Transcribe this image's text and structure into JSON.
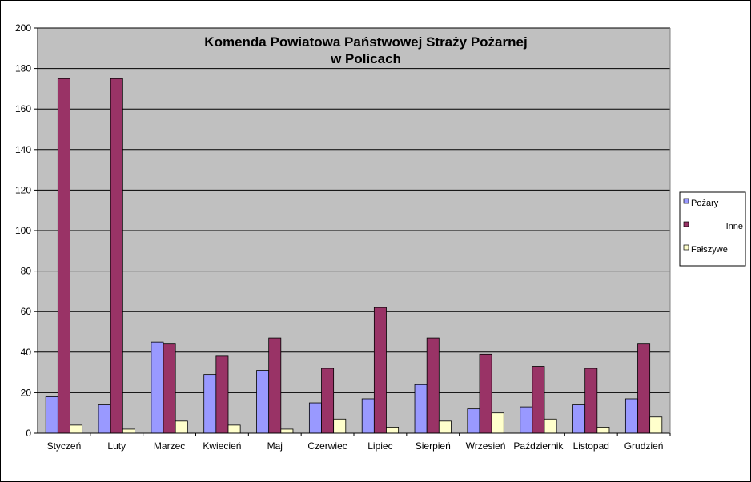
{
  "chart_data": {
    "type": "bar",
    "title_lines": [
      "Komenda Powiatowa Państwowej Straży Pożarnej",
      "w Policach"
    ],
    "categories": [
      "Styczeń",
      "Luty",
      "Marzec",
      "Kwiecień",
      "Maj",
      "Czerwiec",
      "Lipiec",
      "Sierpień",
      "Wrzesień",
      "Październik",
      "Listopad",
      "Grudzień"
    ],
    "series": [
      {
        "name": "Pożary",
        "color": "#9999ff",
        "values": [
          18,
          14,
          45,
          29,
          31,
          15,
          17,
          24,
          12,
          13,
          14,
          17
        ]
      },
      {
        "name": "Inne",
        "color": "#993366",
        "values": [
          175,
          175,
          44,
          38,
          47,
          32,
          62,
          47,
          39,
          33,
          32,
          44
        ]
      },
      {
        "name": "Fałszywe",
        "color": "#ffffcc",
        "values": [
          4,
          2,
          6,
          4,
          2,
          7,
          3,
          6,
          10,
          7,
          3,
          8
        ]
      }
    ],
    "ylim": [
      0,
      200
    ],
    "yticks": [
      0,
      20,
      40,
      60,
      80,
      100,
      120,
      140,
      160,
      180,
      200
    ],
    "grid": true,
    "plot_background": "#c0c0c0",
    "legend_position": "right"
  }
}
